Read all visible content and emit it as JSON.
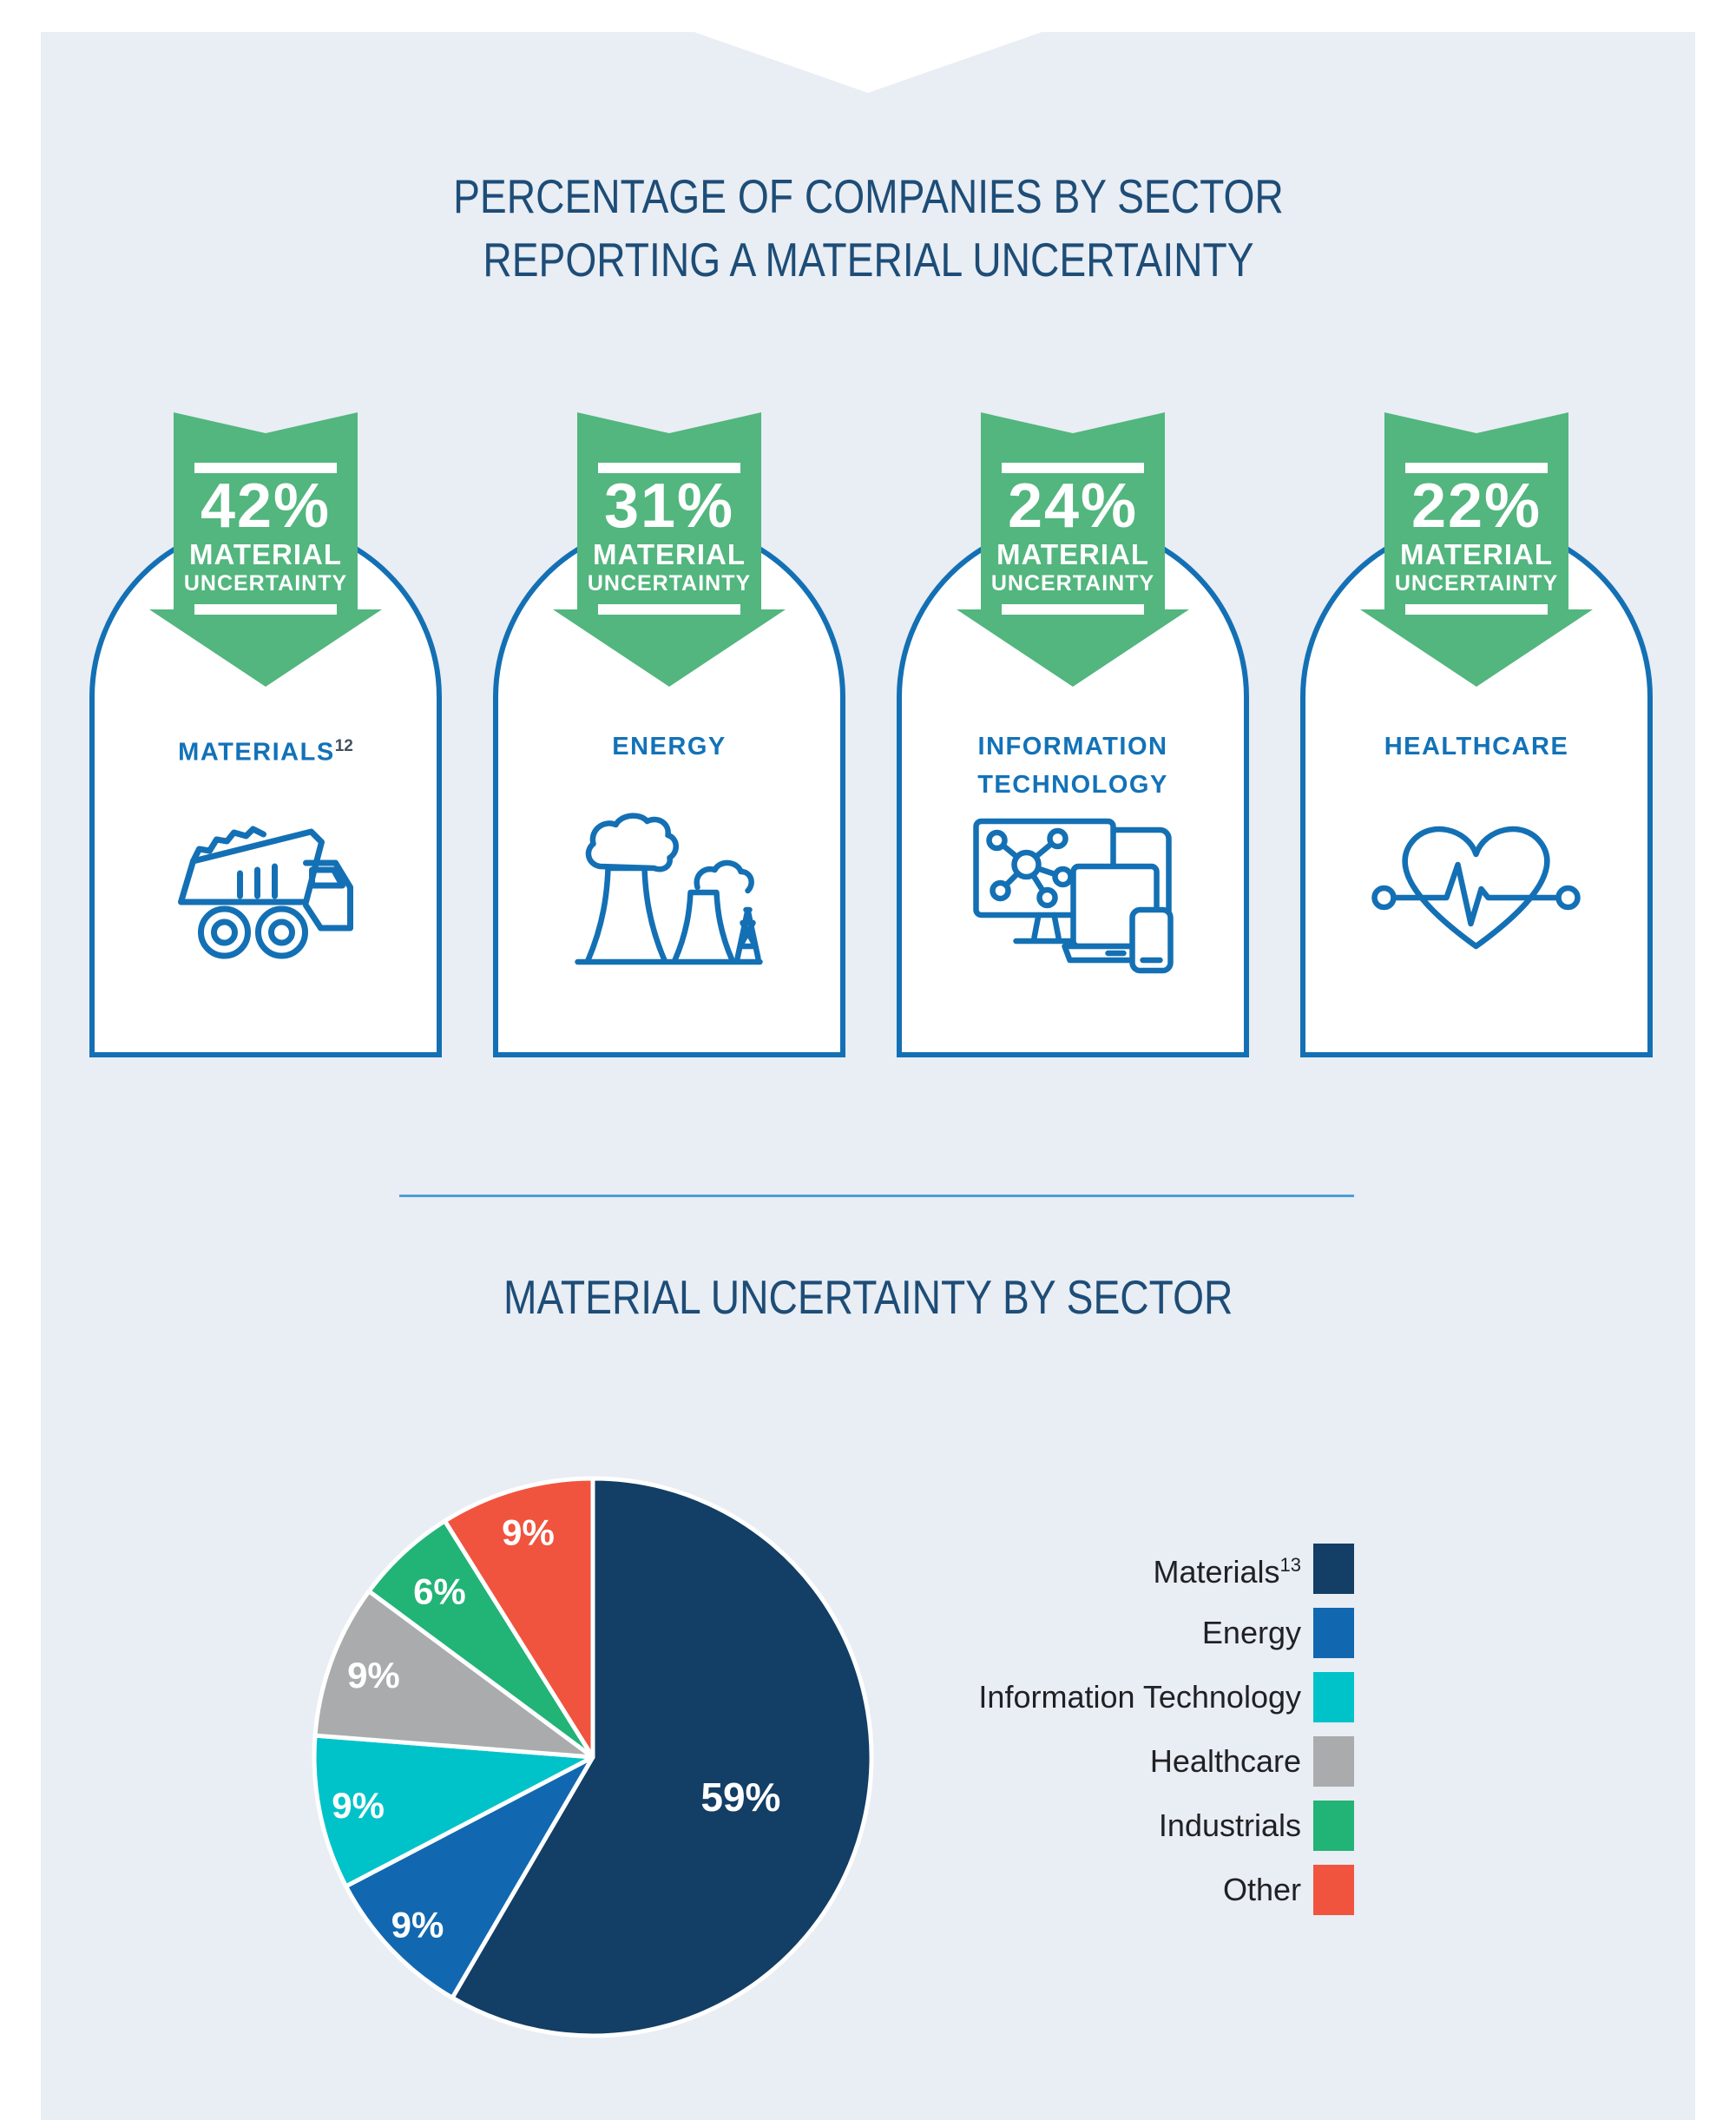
{
  "colors": {
    "page_bg": "#ffffff",
    "panel_bg": "#e9edf4",
    "title_navy": "#1d4d77",
    "ribbon_green": "#52b67e",
    "card_border_blue": "#1470b4",
    "sector_label_blue": "#1272b8",
    "divider_blue": "#4c9ed6",
    "legend_text": "#202124"
  },
  "section1": {
    "title_line1": "PERCENTAGE OF COMPANIES BY SECTOR",
    "title_line2": "REPORTING A MATERIAL UNCERTAINTY",
    "cards": [
      {
        "pct": "42%",
        "ribbon_line1": "MATERIAL",
        "ribbon_line2": "UNCERTAINTY",
        "sector": "MATERIALS",
        "sup": "12",
        "icon": "dump-truck-icon"
      },
      {
        "pct": "31%",
        "ribbon_line1": "MATERIAL",
        "ribbon_line2": "UNCERTAINTY",
        "sector": "ENERGY",
        "icon": "power-plant-icon"
      },
      {
        "pct": "24%",
        "ribbon_line1": "MATERIAL",
        "ribbon_line2": "UNCERTAINTY",
        "sector": "INFORMATION",
        "sector2": "TECHNOLOGY",
        "icon": "devices-icon"
      },
      {
        "pct": "22%",
        "ribbon_line1": "MATERIAL",
        "ribbon_line2": "UNCERTAINTY",
        "sector": "HEALTHCARE",
        "icon": "heart-pulse-icon"
      }
    ]
  },
  "section2": {
    "title": "MATERIAL UNCERTAINTY BY SECTOR",
    "legend": [
      {
        "label": "Materials",
        "sup": "13",
        "color": "#133e65"
      },
      {
        "label": "Energy",
        "color": "#1168b0"
      },
      {
        "label": "Information Technology",
        "color": "#00c3c9"
      },
      {
        "label": "Healthcare",
        "color": "#aaabad"
      },
      {
        "label": "Industrials",
        "color": "#22b376"
      },
      {
        "label": "Other",
        "color": "#f0543f"
      }
    ]
  },
  "chart_data": [
    {
      "type": "table",
      "title": "PERCENTAGE OF COMPANIES BY SECTOR REPORTING A MATERIAL UNCERTAINTY",
      "categories": [
        "Materials",
        "Energy",
        "Information Technology",
        "Healthcare"
      ],
      "values": [
        42,
        31,
        24,
        22
      ],
      "unit": "%"
    },
    {
      "type": "pie",
      "title": "MATERIAL UNCERTAINTY BY SECTOR",
      "labels": [
        "Materials",
        "Energy",
        "Information Technology",
        "Healthcare",
        "Industrials",
        "Other"
      ],
      "values": [
        59,
        9,
        9,
        9,
        6,
        9
      ],
      "unit": "%",
      "colors": [
        "#133e65",
        "#1168b0",
        "#00c3c9",
        "#aaabad",
        "#22b376",
        "#f0543f"
      ],
      "start_angle_deg": 0,
      "direction": "clockwise",
      "slice_label_format": "{value}%",
      "slice_label_radius": [
        0.55,
        0.87,
        0.86,
        0.84,
        0.81,
        0.84
      ],
      "legend_position": "right",
      "slice_stroke": "#ffffff"
    }
  ]
}
